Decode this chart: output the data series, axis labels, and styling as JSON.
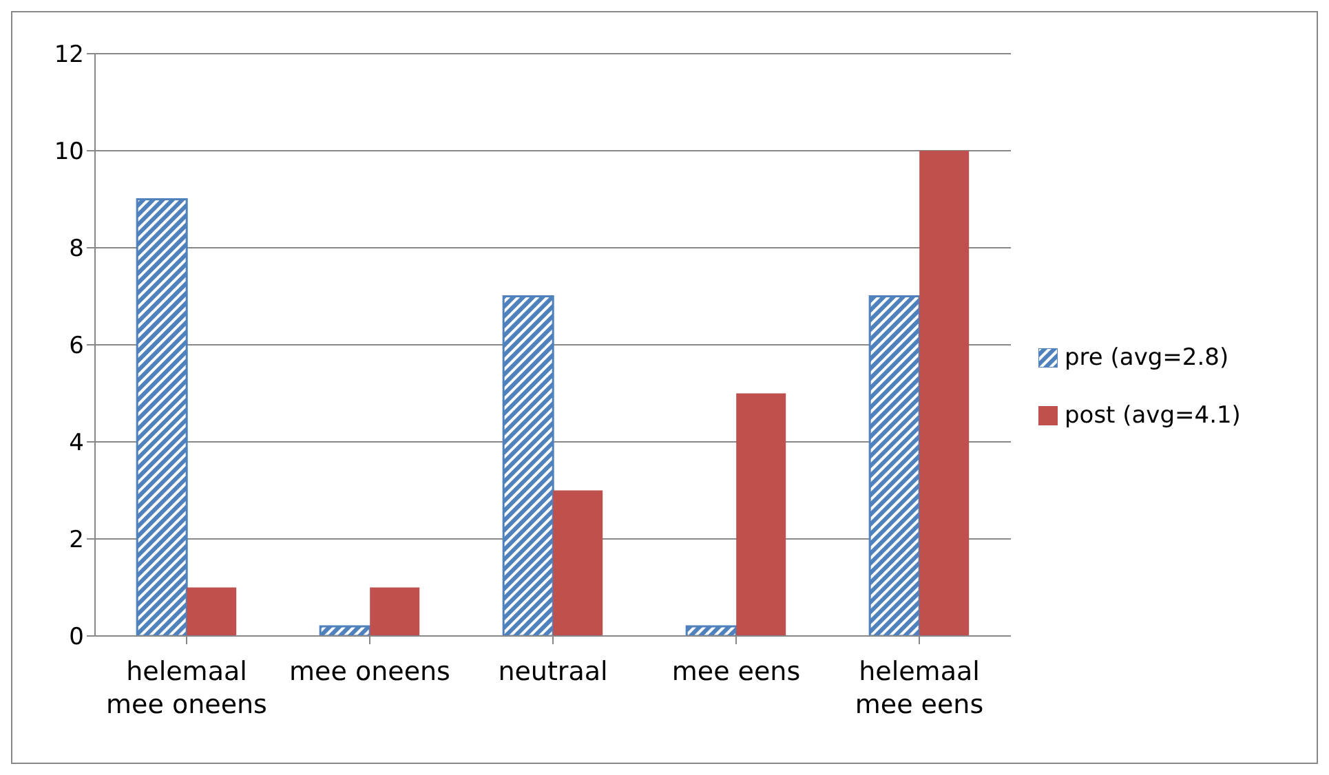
{
  "chart_data": {
    "type": "bar",
    "categories": [
      "helemaal mee oneens",
      "mee oneens",
      "neutraal",
      "mee eens",
      "helemaal mee eens"
    ],
    "series": [
      {
        "name": "pre (avg=2.8)",
        "color": "#4f81bd",
        "values": [
          9,
          0.2,
          7,
          0.2,
          7
        ]
      },
      {
        "name": "post (avg=4.1)",
        "color": "#c0504d",
        "values": [
          1,
          1,
          3,
          5,
          10
        ]
      }
    ],
    "ylim": [
      0,
      12
    ],
    "yticks": [
      0,
      2,
      4,
      6,
      8,
      10,
      12
    ],
    "grid": "y",
    "legend": "right"
  }
}
